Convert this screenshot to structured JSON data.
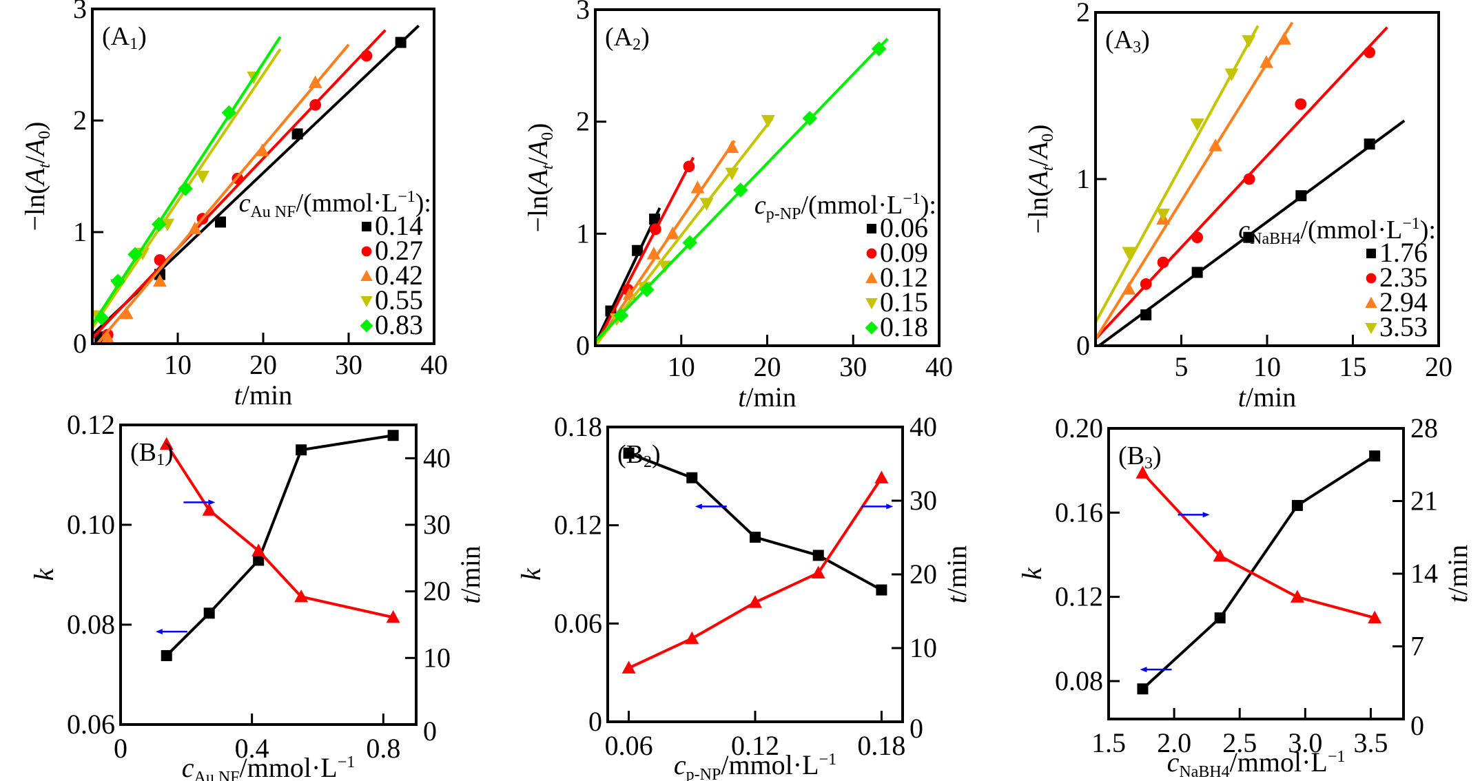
{
  "chart_data": [
    {
      "id": "A1",
      "type": "scatter",
      "panel_label": "(A",
      "panel_sub": "1",
      "xlabel": "t/min",
      "ylabel": "-ln(At/A0)",
      "xlim": [
        0,
        40
      ],
      "ylim": [
        0,
        3
      ],
      "xticks": [
        10,
        20,
        30,
        40
      ],
      "xtick_labels": [
        "10",
        "20",
        "30",
        "40"
      ],
      "yticks": [
        0,
        1,
        2,
        3
      ],
      "ytick_labels": [
        "0",
        "1",
        "2",
        "3"
      ],
      "legend_title": "c",
      "legend_title_sub": "Au NF",
      "legend_title_rest": "/(mmol·L",
      "legend_title_sup": "−1",
      "legend_title_end": "):",
      "legend_position": "bottom-right",
      "series": [
        {
          "name": "0.14",
          "color": "#000000",
          "marker": "square",
          "points": [
            [
              0.9,
              0.06
            ],
            [
              7.9,
              0.62
            ],
            [
              15.0,
              1.09
            ],
            [
              24.0,
              1.88
            ],
            [
              36.1,
              2.7
            ]
          ],
          "fit": [
            [
              0,
              0.08
            ],
            [
              38.2,
              2.85
            ]
          ]
        },
        {
          "name": "0.27",
          "color": "#ff0000",
          "marker": "circle",
          "points": [
            [
              1.8,
              0.08
            ],
            [
              7.9,
              0.75
            ],
            [
              12.9,
              1.12
            ],
            [
              17.0,
              1.48
            ],
            [
              26.1,
              2.14
            ],
            [
              32.1,
              2.58
            ]
          ],
          "fit": [
            [
              0,
              0.05
            ],
            [
              34.3,
              2.81
            ]
          ]
        },
        {
          "name": "0.42",
          "color": "#ff7f1e",
          "marker": "triangle-up",
          "points": [
            [
              1.8,
              0.05
            ],
            [
              4.0,
              0.27
            ],
            [
              7.9,
              0.56
            ],
            [
              12.0,
              1.03
            ],
            [
              19.9,
              1.73
            ],
            [
              26.1,
              2.34
            ]
          ],
          "fit": [
            [
              0.6,
              0
            ],
            [
              30.0,
              2.68
            ]
          ]
        },
        {
          "name": "0.55",
          "color": "#c4c400",
          "marker": "triangle-down",
          "points": [
            [
              0.6,
              0.25
            ],
            [
              2.9,
              0.53
            ],
            [
              5.9,
              0.81
            ],
            [
              8.8,
              1.07
            ],
            [
              12.9,
              1.5
            ],
            [
              18.9,
              2.39
            ]
          ],
          "fit": [
            [
              0,
              0.14
            ],
            [
              22.0,
              2.64
            ]
          ]
        },
        {
          "name": "0.83",
          "color": "#00ee00",
          "marker": "diamond",
          "points": [
            [
              1.1,
              0.23
            ],
            [
              3.0,
              0.56
            ],
            [
              5.0,
              0.8
            ],
            [
              7.8,
              1.07
            ],
            [
              10.9,
              1.39
            ],
            [
              16.0,
              2.07
            ]
          ],
          "fit": [
            [
              0,
              0.17
            ],
            [
              22.0,
              2.75
            ]
          ]
        }
      ]
    },
    {
      "id": "A2",
      "type": "scatter",
      "panel_label": "(A",
      "panel_sub": "2",
      "xlabel": "t/min",
      "ylabel": "-ln(At/A0)",
      "xlim": [
        0,
        40
      ],
      "ylim": [
        0,
        3
      ],
      "xticks": [
        10,
        20,
        30,
        40
      ],
      "xtick_labels": [
        "10",
        "20",
        "30",
        "40"
      ],
      "yticks": [
        0,
        1,
        2,
        3
      ],
      "ytick_labels": [
        "0",
        "1",
        "2",
        "3"
      ],
      "legend_title": "c",
      "legend_title_sub": "p-NP",
      "legend_title_rest": "/(mmol·L",
      "legend_title_sup": "−1",
      "legend_title_end": "):",
      "legend_position": "bottom-right",
      "series": [
        {
          "name": "0.06",
          "color": "#000000",
          "marker": "square",
          "points": [
            [
              1.8,
              0.31
            ],
            [
              4.9,
              0.85
            ],
            [
              6.9,
              1.13
            ]
          ],
          "fit": [
            [
              0,
              0.02
            ],
            [
              7.5,
              1.23
            ]
          ]
        },
        {
          "name": "0.09",
          "color": "#ff0000",
          "marker": "circle",
          "points": [
            [
              3.8,
              0.5
            ],
            [
              7.0,
              1.04
            ],
            [
              10.9,
              1.6
            ]
          ],
          "fit": [
            [
              0,
              0
            ],
            [
              11.4,
              1.68
            ]
          ]
        },
        {
          "name": "0.12",
          "color": "#ff7f1e",
          "marker": "triangle-up",
          "points": [
            [
              4.0,
              0.46
            ],
            [
              6.8,
              0.82
            ],
            [
              9.0,
              1.0
            ],
            [
              11.9,
              1.41
            ],
            [
              15.9,
              1.77
            ]
          ],
          "fit": [
            [
              0,
              0
            ],
            [
              16.2,
              1.83
            ]
          ]
        },
        {
          "name": "0.15",
          "color": "#c4c400",
          "marker": "triangle-down",
          "points": [
            [
              2.5,
              0.24
            ],
            [
              5.7,
              0.52
            ],
            [
              8.1,
              0.71
            ],
            [
              12.95,
              1.27
            ],
            [
              15.9,
              1.54
            ],
            [
              20.1,
              2.01
            ]
          ],
          "fit": [
            [
              0,
              0
            ],
            [
              20.6,
              2.03
            ]
          ]
        },
        {
          "name": "0.18",
          "color": "#00ee00",
          "marker": "diamond",
          "points": [
            [
              3.0,
              0.27
            ],
            [
              6.0,
              0.5
            ],
            [
              11.0,
              0.92
            ],
            [
              16.9,
              1.39
            ],
            [
              24.95,
              2.03
            ],
            [
              33.0,
              2.65
            ]
          ],
          "fit": [
            [
              0,
              0.04
            ],
            [
              34.0,
              2.74
            ]
          ]
        }
      ]
    },
    {
      "id": "A3",
      "type": "scatter",
      "panel_label": "(A",
      "panel_sub": "3",
      "xlabel": "t/min",
      "ylabel": "-ln(At/A0)",
      "xlim": [
        0,
        20
      ],
      "ylim": [
        0,
        2
      ],
      "xticks": [
        5,
        10,
        15,
        20
      ],
      "xtick_labels": [
        "5",
        "10",
        "15",
        "20"
      ],
      "yticks": [
        0,
        1,
        2
      ],
      "ytick_labels": [
        "0",
        "1",
        "2"
      ],
      "legend_title": "c",
      "legend_title_sub": "NaBH4",
      "legend_title_rest": "/(mmol·L",
      "legend_title_sup": "−1",
      "legend_title_end": "):",
      "legend_position": "bottom-right",
      "series": [
        {
          "name": "1.76",
          "color": "#000000",
          "marker": "square",
          "points": [
            [
              2.94,
              0.185
            ],
            [
              5.93,
              0.44
            ],
            [
              8.93,
              0.65
            ],
            [
              11.98,
              0.9
            ],
            [
              15.97,
              1.21
            ]
          ],
          "fit": [
            [
              0.2,
              0
            ],
            [
              18.0,
              1.35
            ]
          ]
        },
        {
          "name": "2.35",
          "color": "#ff0000",
          "marker": "circle",
          "points": [
            [
              2.94,
              0.37
            ],
            [
              3.94,
              0.5
            ],
            [
              5.93,
              0.65
            ],
            [
              8.96,
              1.0
            ],
            [
              11.96,
              1.45
            ],
            [
              15.97,
              1.76
            ]
          ],
          "fit": [
            [
              0,
              0.04
            ],
            [
              17.0,
              1.91
            ]
          ]
        },
        {
          "name": "2.94",
          "color": "#ff7f1e",
          "marker": "triangle-up",
          "points": [
            [
              1.94,
              0.34
            ],
            [
              3.94,
              0.76
            ],
            [
              6.99,
              1.2
            ],
            [
              9.96,
              1.7
            ],
            [
              11.0,
              1.84
            ]
          ],
          "fit": [
            [
              0,
              0.04
            ],
            [
              11.47,
              1.94
            ]
          ]
        },
        {
          "name": "3.53",
          "color": "#c4c400",
          "marker": "triangle-down",
          "points": [
            [
              1.94,
              0.56
            ],
            [
              3.94,
              0.79
            ],
            [
              5.93,
              1.33
            ],
            [
              7.93,
              1.63
            ],
            [
              8.93,
              1.83
            ]
          ],
          "fit": [
            [
              0,
              0.14
            ],
            [
              9.47,
              1.92
            ]
          ]
        }
      ]
    },
    {
      "id": "B1",
      "type": "line",
      "panel_label": "(B",
      "panel_sub": "1",
      "xlabel_main": "c",
      "xlabel_sub": "Au NF",
      "xlabel_rest": "/mmol·L",
      "xlabel_sup": "−1",
      "ylabel_left": "k",
      "ylabel_right": "t/min",
      "xlim": [
        0,
        0.9
      ],
      "ylim_left": [
        0.06,
        0.12
      ],
      "ylim_right": [
        0,
        45
      ],
      "xticks": [
        0,
        0.4,
        0.8
      ],
      "xtick_labels": [
        "0",
        "0.4",
        "0.8"
      ],
      "yticks_left": [
        0.06,
        0.08,
        0.1,
        0.12
      ],
      "ytick_labels_left": [
        "0.06",
        "0.08",
        "0.10",
        "0.12"
      ],
      "yticks_right": [
        0,
        10,
        20,
        30,
        40
      ],
      "ytick_labels_right": [
        "0",
        "10",
        "20",
        "30",
        "40"
      ],
      "x": [
        0.14,
        0.27,
        0.42,
        0.55,
        0.83
      ],
      "series": [
        {
          "name": "k",
          "axis": "left",
          "color": "#000000",
          "marker": "square",
          "values": [
            0.0738,
            0.0823,
            0.0929,
            0.115,
            0.1179
          ]
        },
        {
          "name": "t",
          "axis": "right",
          "color": "#ff0000",
          "marker": "triangle-up",
          "values": [
            42.1,
            32.2,
            26.1,
            19.2,
            16.1
          ]
        }
      ],
      "arrows": [
        {
          "points_to": "right",
          "at_x": 0.24,
          "at_y_left": 0.1045,
          "color": "#0000ff"
        },
        {
          "points_to": "left",
          "at_x": 0.155,
          "at_y_left": 0.0786,
          "color": "#0000ff"
        }
      ]
    },
    {
      "id": "B2",
      "type": "line",
      "panel_label": "(B",
      "panel_sub": "2",
      "xlabel_main": "c",
      "xlabel_sub": "p-NP",
      "xlabel_rest": "/mmol·L",
      "xlabel_sup": "−1",
      "ylabel_left": "k",
      "ylabel_right": "t/min",
      "xlim": [
        0.05,
        0.19
      ],
      "ylim_left": [
        0,
        0.18
      ],
      "ylim_right": [
        0,
        40
      ],
      "xticks": [
        0.06,
        0.12,
        0.18
      ],
      "xtick_labels": [
        "0.06",
        "0.12",
        "0.18"
      ],
      "yticks_left": [
        0,
        0.06,
        0.12,
        0.18
      ],
      "ytick_labels_left": [
        "0",
        "0.06",
        "0.12",
        "0.18"
      ],
      "yticks_right": [
        0,
        10,
        20,
        30,
        40
      ],
      "ytick_labels_right": [
        "0",
        "10",
        "20",
        "30",
        "40"
      ],
      "x": [
        0.06,
        0.09,
        0.12,
        0.15,
        0.18
      ],
      "series": [
        {
          "name": "k",
          "axis": "left",
          "color": "#000000",
          "marker": "square",
          "values": [
            0.164,
            0.149,
            0.1127,
            0.1016,
            0.0805
          ]
        },
        {
          "name": "t",
          "axis": "right",
          "color": "#ff0000",
          "marker": "triangle-up",
          "values": [
            7.3,
            11.3,
            16.2,
            20.2,
            33.1
          ]
        }
      ],
      "arrows": [
        {
          "points_to": "left",
          "at_x": 0.099,
          "at_y_left": 0.1315,
          "color": "#0000ff"
        },
        {
          "points_to": "right",
          "at_x": 0.178,
          "at_y_left": 0.1315,
          "color": "#0000ff"
        }
      ]
    },
    {
      "id": "B3",
      "type": "line",
      "panel_label": "(B",
      "panel_sub": "3",
      "xlabel_main": "c",
      "xlabel_sub": "NaBH4",
      "xlabel_rest": "/mmol·L",
      "xlabel_sup": "−1",
      "ylabel_left": "k",
      "ylabel_right": "t/min",
      "xlim": [
        1.5,
        3.75
      ],
      "ylim_left": [
        0.062,
        0.2
      ],
      "ylim_right": [
        0,
        28
      ],
      "xticks": [
        1.5,
        2.0,
        2.5,
        3.0,
        3.5
      ],
      "xtick_labels": [
        "1.5",
        "2.0",
        "2.5",
        "3.0",
        "3.5"
      ],
      "yticks_left": [
        0.08,
        0.12,
        0.16,
        0.2
      ],
      "ytick_labels_left": [
        "0.08",
        "0.12",
        "0.16",
        "0.20"
      ],
      "yticks_right": [
        0,
        7,
        14,
        21,
        28
      ],
      "ytick_labels_right": [
        "0",
        "7",
        "14",
        "21",
        "28"
      ],
      "x": [
        1.76,
        2.35,
        2.94,
        3.53
      ],
      "series": [
        {
          "name": "k",
          "axis": "left",
          "color": "#000000",
          "marker": "square",
          "values": [
            0.0763,
            0.11,
            0.1634,
            0.1869
          ]
        },
        {
          "name": "t",
          "axis": "right",
          "color": "#ff0000",
          "marker": "triangle-up",
          "values": [
            23.7,
            15.7,
            11.75,
            9.75
          ]
        }
      ],
      "arrows": [
        {
          "points_to": "right",
          "at_x": 2.15,
          "at_y_left": 0.159,
          "color": "#0000ff"
        },
        {
          "points_to": "left",
          "at_x": 1.86,
          "at_y_left": 0.0855,
          "color": "#0000ff"
        }
      ]
    }
  ]
}
